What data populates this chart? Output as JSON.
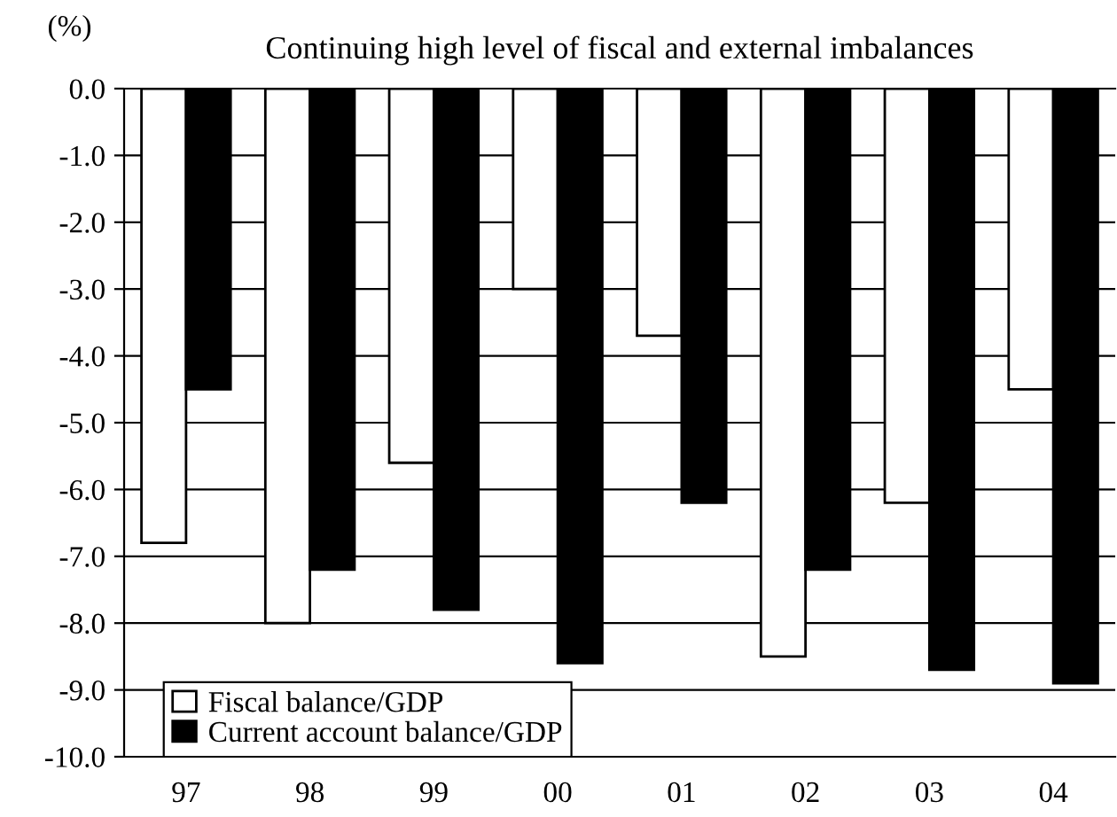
{
  "chart_data": {
    "type": "bar",
    "title": "Continuing high level of fiscal and external imbalances",
    "ylabel": "(%)",
    "categories": [
      "97",
      "98",
      "99",
      "00",
      "01",
      "02",
      "03",
      "04"
    ],
    "series": [
      {
        "name": "Fiscal balance/GDP",
        "color": "#ffffff",
        "values": [
          -6.8,
          -8.0,
          -5.6,
          -3.0,
          -3.7,
          -8.5,
          -6.2,
          -4.5
        ]
      },
      {
        "name": "Current account balance/GDP",
        "color": "#000000",
        "values": [
          -4.5,
          -7.2,
          -7.8,
          -8.6,
          -6.2,
          -7.2,
          -8.7,
          -8.9
        ]
      }
    ],
    "ylim": [
      -10,
      0
    ],
    "yticks": [
      {
        "value": 0,
        "label": "0.0"
      },
      {
        "value": -1,
        "label": "-1.0"
      },
      {
        "value": -2,
        "label": "-2.0"
      },
      {
        "value": -3,
        "label": "-3.0"
      },
      {
        "value": -4,
        "label": "-4.0"
      },
      {
        "value": -5,
        "label": "-5.0"
      },
      {
        "value": -6,
        "label": "-6.0"
      },
      {
        "value": -7,
        "label": "-7.0"
      },
      {
        "value": -8,
        "label": "-8.0"
      },
      {
        "value": -9,
        "label": "-9.0"
      },
      {
        "value": -10,
        "label": "-10.0"
      }
    ],
    "grid": "y",
    "legend": "bottom left"
  }
}
